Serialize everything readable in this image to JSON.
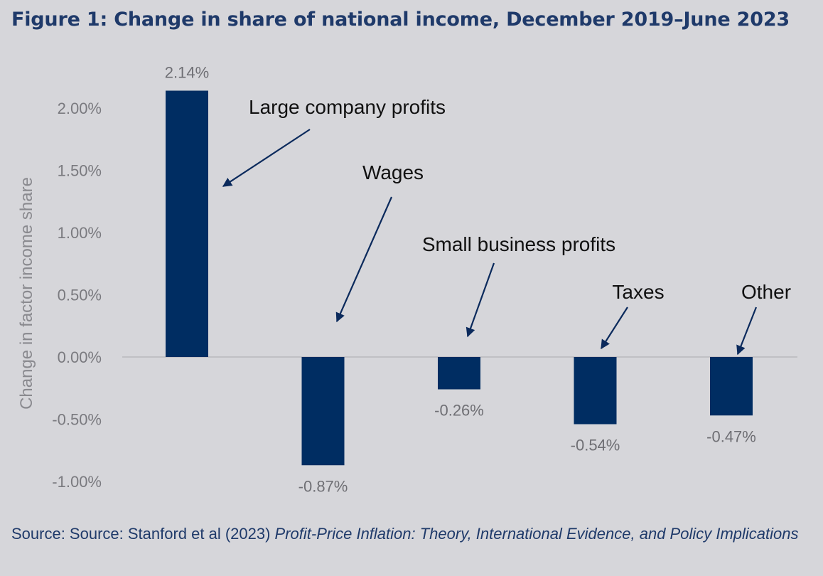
{
  "title": "Figure 1: Change in share of national income, December 2019–June 2023",
  "source": {
    "prefix": "Source: Source: Stanford et al (2023) ",
    "italic": "Profit-Price Inflation: Theory, International Evidence, and Policy Implications"
  },
  "colors": {
    "bar": "#002d62",
    "arrow": "#0b2a5c",
    "axis": "#b8b8bc",
    "background": "#d6d6da"
  },
  "chart_data": {
    "type": "bar",
    "title": "Figure 1: Change in share of national income, December 2019–June 2023",
    "ylabel": "Change in factor income share",
    "xlabel": "",
    "ylim": [
      -1.0,
      2.0
    ],
    "y_ticks": [
      2.0,
      1.5,
      1.0,
      0.5,
      0.0,
      -0.5,
      -1.0
    ],
    "y_tick_labels": [
      "2.00%",
      "1.50%",
      "1.00%",
      "0.50%",
      "0.00%",
      "-0.50%",
      "-1.00%"
    ],
    "grid": false,
    "legend": "none",
    "categories": [
      "Large company profits",
      "Wages",
      "Small business profits",
      "Taxes",
      "Other"
    ],
    "values": [
      2.14,
      -0.87,
      -0.26,
      -0.54,
      -0.47
    ],
    "data_labels": [
      "2.14%",
      "-0.87%",
      "-0.26%",
      "-0.54%",
      "-0.47%"
    ],
    "annotations": [
      "Large company profits",
      "Wages",
      "Small business profits",
      "Taxes",
      "Other"
    ]
  }
}
